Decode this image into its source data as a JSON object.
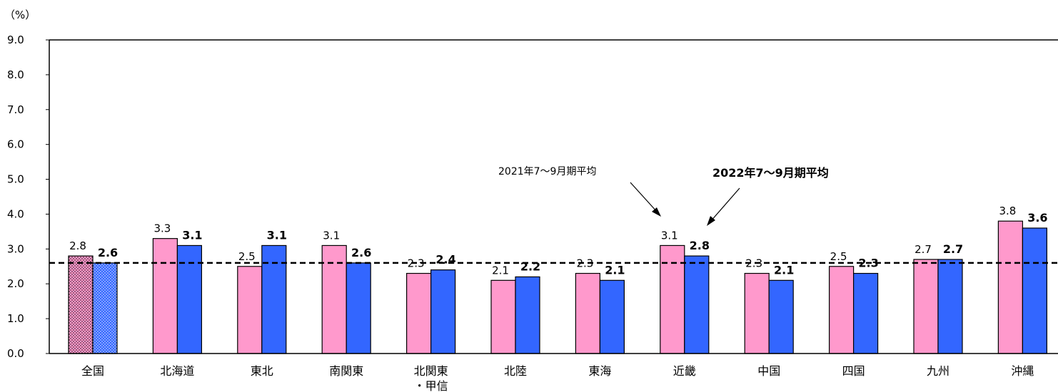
{
  "chart_data": {
    "type": "bar",
    "unit_label": "（%）",
    "yticks": [
      "0.0",
      "1.0",
      "2.0",
      "3.0",
      "4.0",
      "5.0",
      "6.0",
      "7.0",
      "8.0",
      "9.0"
    ],
    "ylim": [
      0,
      9
    ],
    "categories": [
      "全国",
      "北海道",
      "東北",
      "南関東",
      "北関東",
      "北陸",
      "東海",
      "近畿",
      "中国",
      "四国",
      "九州",
      "沖縄"
    ],
    "category_sublabels": {
      "4": "・甲信"
    },
    "series": [
      {
        "name": "2021年7～9月期平均",
        "color": "#ff99cc",
        "values": [
          2.8,
          3.3,
          2.5,
          3.1,
          2.3,
          2.1,
          2.3,
          3.1,
          2.3,
          2.5,
          2.7,
          3.8
        ],
        "labels": [
          "2.8",
          "3.3",
          "2.5",
          "3.1",
          "2.3",
          "2.1",
          "2.3",
          "3.1",
          "2.3",
          "2.5",
          "2.7",
          "3.8"
        ]
      },
      {
        "name": "2022年7～9月期平均",
        "color": "#3366ff",
        "values": [
          2.6,
          3.1,
          3.1,
          2.6,
          2.4,
          2.2,
          2.1,
          2.8,
          2.1,
          2.3,
          2.7,
          3.6
        ],
        "labels": [
          "2.6",
          "3.1",
          "3.1",
          "2.6",
          "2.4",
          "2.2",
          "2.1",
          "2.8",
          "2.1",
          "2.3",
          "2.7",
          "3.6"
        ]
      }
    ],
    "reference_line": {
      "value": 2.6,
      "style": "dashed"
    },
    "grid": false
  }
}
